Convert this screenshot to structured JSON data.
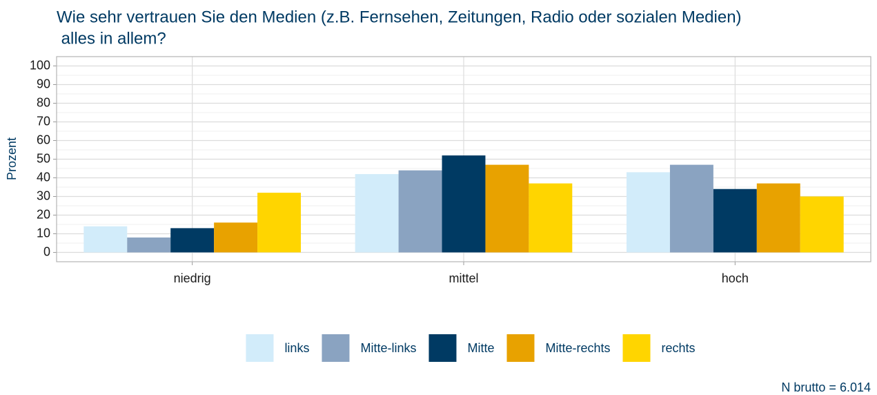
{
  "chart_data": {
    "type": "bar",
    "title": [
      "Wie sehr vertrauen Sie den Medien (z.B. Fernsehen, Zeitungen, Radio oder sozialen Medien)",
      " alles in allem?"
    ],
    "y_label": "Prozent",
    "caption": "N brutto = 6.014",
    "categories": [
      "niedrig",
      "mittel",
      "hoch"
    ],
    "series": [
      {
        "name": "links",
        "color": "#d2ecfa",
        "values": [
          14,
          42,
          43
        ]
      },
      {
        "name": "Mitte-links",
        "color": "#8aa3c1",
        "values": [
          8,
          44,
          47
        ]
      },
      {
        "name": "Mitte",
        "color": "#003a63",
        "values": [
          13,
          52,
          34
        ]
      },
      {
        "name": "Mitte-rechts",
        "color": "#e8a200",
        "values": [
          16,
          47,
          37
        ]
      },
      {
        "name": "rechts",
        "color": "#ffd500",
        "values": [
          32,
          37,
          30
        ]
      }
    ],
    "ylim": [
      -5,
      105
    ],
    "yticks": [
      0,
      10,
      20,
      30,
      40,
      50,
      60,
      70,
      80,
      90,
      100
    ],
    "grid": true,
    "legend": "bottom"
  }
}
